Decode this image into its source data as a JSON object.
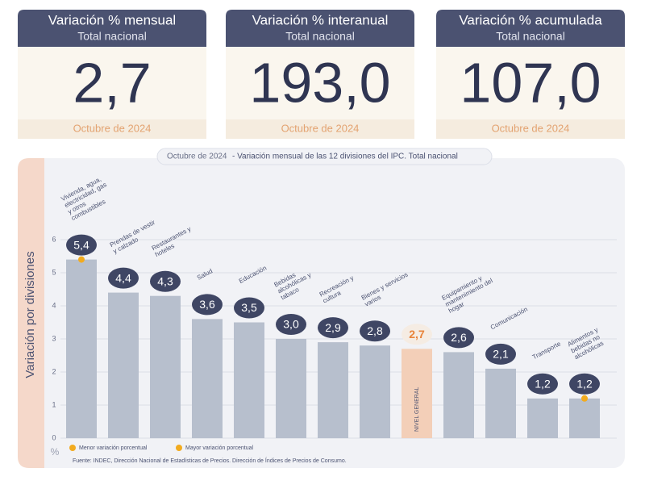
{
  "cards": [
    {
      "title": "Variación % mensual",
      "subtitle": "Total nacional",
      "value": "2,7",
      "date": "Octubre de 2024"
    },
    {
      "title": "Variación % interanual",
      "subtitle": "Total nacional",
      "value": "193,0",
      "date": "Octubre de 2024"
    },
    {
      "title": "Variación % acumulada",
      "subtitle": "Total nacional",
      "value": "107,0",
      "date": "Octubre de 2024"
    }
  ],
  "chart_data": {
    "type": "bar",
    "title_date": "Octubre de 2024",
    "title": "- Variación mensual de las 12 divisiones del IPC. Total nacional",
    "y_label": "Variación por divisiones",
    "unit": "%",
    "categories": [
      "Vivienda, agua, electricidad, gas y otros combustibles",
      "Prendas de vestir y calzado",
      "Restaurantes y hoteles",
      "Salud",
      "Educación",
      "Bebidas alcohólicas y tabaco",
      "Recreación y cultura",
      "Bienes y servicios varios",
      "NIVEL GENERAL",
      "Equipamiento y mantenimiento del hogar",
      "Comunicación",
      "Transporte",
      "Alimentos y bebidas no alcohólicas"
    ],
    "values": [
      5.4,
      4.4,
      4.3,
      3.6,
      3.5,
      3.0,
      2.9,
      2.8,
      2.7,
      2.6,
      2.1,
      1.2,
      1.2
    ],
    "value_labels": [
      "5,4",
      "4,4",
      "4,3",
      "3,6",
      "3,5",
      "3,0",
      "2,9",
      "2,8",
      "2,7",
      "2,6",
      "2,1",
      "1,2",
      "1,2"
    ],
    "colors": [
      "#b7bfcd",
      "#b7bfcd",
      "#b7bfcd",
      "#b7bfcd",
      "#b7bfcd",
      "#b7bfcd",
      "#b7bfcd",
      "#b7bfcd",
      "#f3cfb8",
      "#b7bfcd",
      "#b7bfcd",
      "#b7bfcd",
      "#b7bfcd"
    ],
    "reference_color": "#f3cfb8",
    "ylim": [
      0,
      6
    ],
    "yticks": [
      0,
      1,
      2,
      3,
      4,
      5,
      6
    ],
    "grid": true,
    "markers": [
      {
        "name": "Menor variación porcentual",
        "color": "#f2ab1f",
        "index": 12
      },
      {
        "name": "Mayor variación porcentual",
        "color": "#f2ab1f",
        "index": 0
      }
    ],
    "source": "Fuente: INDEC, Dirección Nacional de Estadísticas de Precios. Dirección de Índices de Precios de Consumo."
  }
}
